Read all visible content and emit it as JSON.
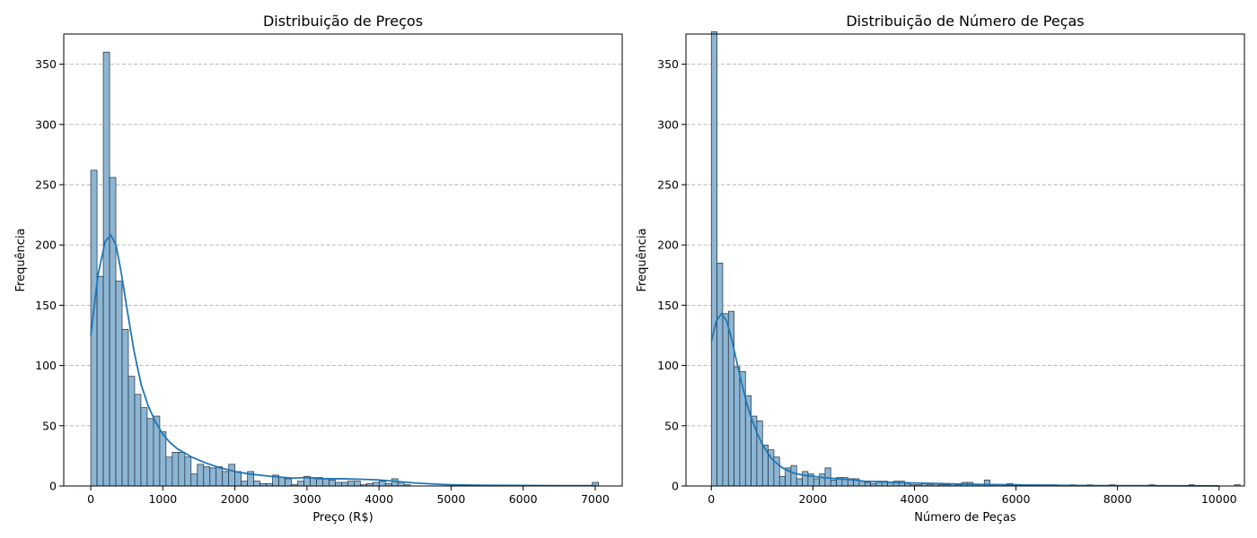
{
  "chart_data": [
    {
      "type": "histogram",
      "title": "Distribuição de Preços",
      "xlabel": "Preço (R$)",
      "ylabel": "Frequência",
      "xlim": [
        -375,
        7375
      ],
      "ylim": [
        0,
        375
      ],
      "xticks": [
        0,
        1000,
        2000,
        3000,
        4000,
        5000,
        6000,
        7000
      ],
      "yticks": [
        0,
        50,
        100,
        150,
        200,
        250,
        300,
        350
      ],
      "bin_width": 87,
      "bin_start": 0,
      "counts": [
        262,
        174,
        360,
        256,
        170,
        130,
        91,
        76,
        65,
        56,
        58,
        45,
        24,
        28,
        28,
        24,
        10,
        18,
        16,
        15,
        16,
        12,
        18,
        12,
        4,
        12,
        4,
        2,
        2,
        9,
        7,
        6,
        1,
        4,
        8,
        7,
        7,
        6,
        5,
        3,
        3,
        4,
        4,
        1,
        2,
        3,
        4,
        2,
        6,
        3,
        1,
        0,
        0,
        0,
        0,
        0,
        0,
        0,
        1,
        0,
        0,
        0,
        0,
        0,
        0,
        0,
        0,
        0,
        0,
        0,
        0,
        0,
        0,
        0,
        0,
        0,
        0,
        0,
        0,
        0,
        3
      ],
      "kde": {
        "x": [
          0,
          100,
          200,
          280,
          350,
          420,
          500,
          600,
          700,
          800,
          900,
          1000,
          1100,
          1200,
          1400,
          1600,
          1800,
          2000,
          2200,
          2500,
          2800,
          3000,
          3200,
          3500,
          3800,
          4000,
          4200,
          4500,
          4800,
          5000,
          5500,
          6000,
          6500,
          7000
        ],
        "y": [
          125,
          175,
          203,
          208,
          200,
          178,
          148,
          112,
          84,
          66,
          53,
          43,
          36,
          31,
          24,
          19,
          15,
          12,
          10,
          8,
          6.5,
          7,
          6,
          6,
          5.5,
          5,
          4,
          2.5,
          1.5,
          1,
          0.5,
          0.4,
          0.3,
          0.3
        ]
      },
      "grid": "y",
      "color": "#1f77b4",
      "bar_color": "#8db5d4"
    },
    {
      "type": "histogram",
      "title": "Distribuição de Número de Peças",
      "xlabel": "Número de Peças",
      "ylabel": "Frequência",
      "xlim": [
        -500,
        10500
      ],
      "ylim": [
        0,
        375
      ],
      "xticks": [
        0,
        2000,
        4000,
        6000,
        8000,
        10000
      ],
      "yticks": [
        0,
        50,
        100,
        150,
        200,
        250,
        300,
        350
      ],
      "bin_width": 112,
      "bin_start": 0,
      "counts": [
        377,
        185,
        143,
        145,
        99,
        95,
        75,
        58,
        54,
        34,
        30,
        24,
        8,
        15,
        17,
        6,
        12,
        10,
        6,
        10,
        15,
        5,
        7,
        7,
        6,
        6,
        4,
        3,
        2,
        4,
        4,
        3,
        4,
        4,
        2,
        1,
        1,
        2,
        1,
        2,
        1,
        1,
        2,
        1,
        3,
        3,
        1,
        1,
        5,
        1,
        0,
        0,
        2,
        0,
        1,
        0,
        0,
        1,
        1,
        1,
        1,
        0,
        0,
        1,
        0,
        0,
        1,
        0,
        0,
        0,
        1,
        0,
        0,
        0,
        0,
        0,
        0,
        1,
        0,
        0,
        0,
        0,
        0,
        0,
        1,
        0,
        0,
        0,
        0,
        0,
        0,
        0,
        1,
        0,
        0,
        0,
        0,
        0,
        0,
        0,
        0,
        0,
        0,
        1,
        0,
        0,
        0,
        0,
        0,
        1
      ],
      "kde": {
        "x": [
          0,
          100,
          200,
          300,
          400,
          500,
          600,
          700,
          800,
          900,
          1000,
          1100,
          1200,
          1400,
          1600,
          1800,
          2000,
          2200,
          2500,
          2800,
          3000,
          3300,
          3600,
          4000,
          4500,
          5000,
          5500,
          6000,
          6500,
          7000,
          8000,
          9000,
          10000
        ],
        "y": [
          120,
          137,
          143,
          137,
          122,
          103,
          85,
          68,
          55,
          44,
          35,
          28,
          22,
          15,
          11,
          9,
          8,
          7,
          6,
          5,
          4,
          3.5,
          3,
          2.5,
          2,
          1.5,
          1.2,
          1,
          0.6,
          0.4,
          0.3,
          0.2,
          0.1
        ]
      },
      "grid": "y",
      "color": "#1f77b4",
      "bar_color": "#8db5d4"
    }
  ]
}
